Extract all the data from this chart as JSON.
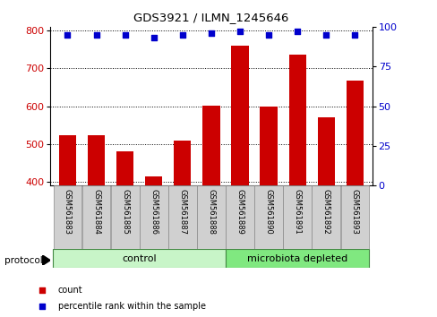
{
  "title": "GDS3921 / ILMN_1245646",
  "samples": [
    "GSM561883",
    "GSM561884",
    "GSM561885",
    "GSM561886",
    "GSM561887",
    "GSM561888",
    "GSM561889",
    "GSM561890",
    "GSM561891",
    "GSM561892",
    "GSM561893"
  ],
  "counts": [
    522,
    522,
    480,
    415,
    508,
    602,
    760,
    600,
    737,
    570,
    668
  ],
  "percentile_ranks": [
    95,
    95,
    95,
    93,
    95,
    96,
    97,
    95,
    97,
    95,
    95
  ],
  "group_labels": [
    "control",
    "microbiota depleted"
  ],
  "group_colors": [
    "#c8f5c8",
    "#80e880"
  ],
  "bar_color": "#cc0000",
  "dot_color": "#0000cc",
  "ylim_left": [
    390,
    810
  ],
  "ylim_right": [
    0,
    100
  ],
  "yticks_left": [
    400,
    500,
    600,
    700,
    800
  ],
  "yticks_right": [
    0,
    25,
    50,
    75,
    100
  ],
  "background_color": "#ffffff",
  "gridline_color": "#000000",
  "legend_items": [
    "count",
    "percentile rank within the sample"
  ],
  "legend_colors": [
    "#cc0000",
    "#0000cc"
  ],
  "bar_width": 0.6,
  "label_box_color": "#d0d0d0",
  "ctrl_count": 6,
  "micro_count": 5
}
